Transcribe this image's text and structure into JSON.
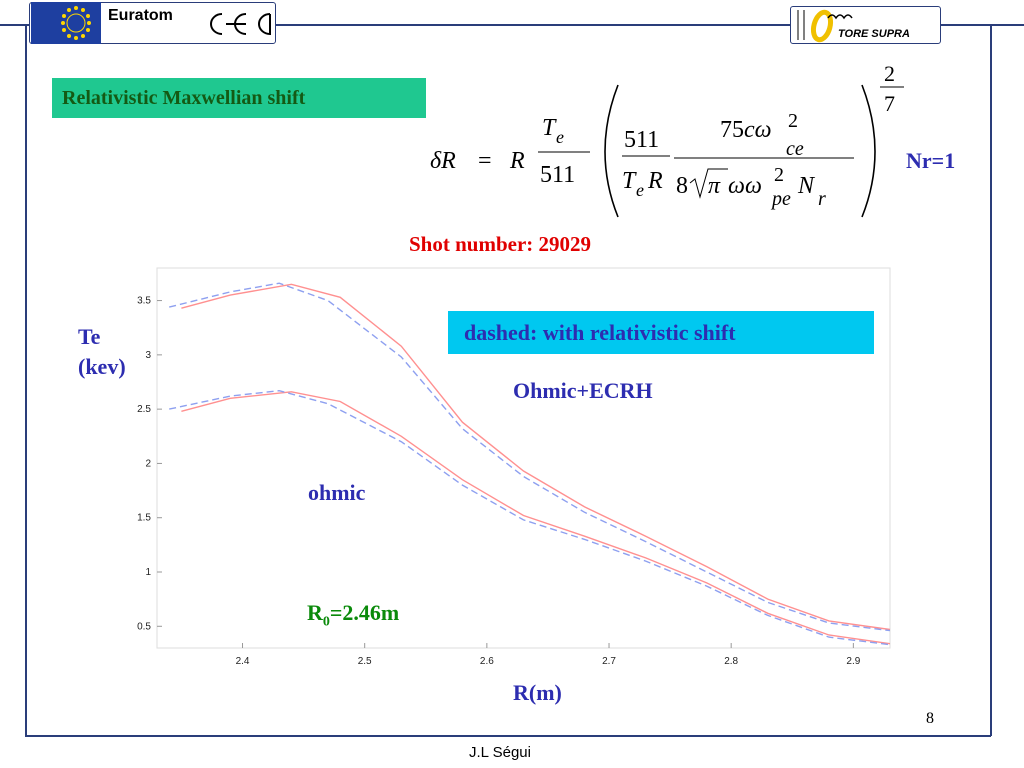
{
  "header": {
    "left_logo_text": "Euratom",
    "right_logo_text": "TORE SUPRA"
  },
  "section_title": "Relativistic Maxwellian shift",
  "formula": {
    "lhs": "δR",
    "description": "δR = R (Te/511) ( (511/(Te R)) (75 c ω_ce^2) / (8 √π ω ω_pe^2 N_r) )^(2/7)"
  },
  "nr_label": "Nr=1",
  "shot_label": "Shot number: 29029",
  "y_axis_label_line1": "Te",
  "y_axis_label_line2": "(kev)",
  "x_axis_label": "R(m)",
  "legend_note": "dashed: with relativistic shift",
  "annotations": {
    "ohmic_ecrh": "Ohmic+ECRH",
    "ohmic": "ohmic",
    "r0_prefix": "R",
    "r0_sub": "0",
    "r0_value": "=2.46m"
  },
  "page_number": "8",
  "author": "J.L Ségui",
  "colors": {
    "solid_series": "#ff9090",
    "dashed_series": "#8ea0f0",
    "title_bg": "#1fc890",
    "note_bg": "#00c8f0",
    "label_blue": "#2d2db0",
    "label_green": "#0a8a0a",
    "label_red": "#e00000"
  },
  "chart_data": {
    "type": "line",
    "xlim": [
      2.33,
      2.93
    ],
    "ylim": [
      0.3,
      3.8
    ],
    "x_ticks": [
      "2.4",
      "2.5",
      "2.6",
      "2.7",
      "2.8",
      "2.9"
    ],
    "y_ticks": [
      "0.5",
      "1",
      "1.5",
      "2",
      "2.5",
      "3",
      "3.5"
    ],
    "grid": false,
    "series": [
      {
        "style": "solid",
        "x": [
          2.35,
          2.39,
          2.44,
          2.48,
          2.53,
          2.58,
          2.63,
          2.68,
          2.73,
          2.78,
          2.83,
          2.88,
          2.93
        ],
        "values": [
          3.43,
          3.55,
          3.65,
          3.53,
          3.08,
          2.38,
          1.93,
          1.6,
          1.33,
          1.05,
          0.75,
          0.55,
          0.47
        ]
      },
      {
        "style": "dashed",
        "x": [
          2.34,
          2.39,
          2.43,
          2.47,
          2.53,
          2.58,
          2.63,
          2.68,
          2.73,
          2.78,
          2.83,
          2.88,
          2.93
        ],
        "values": [
          3.44,
          3.58,
          3.66,
          3.5,
          2.98,
          2.32,
          1.88,
          1.55,
          1.28,
          1.0,
          0.72,
          0.53,
          0.46
        ]
      },
      {
        "style": "solid",
        "x": [
          2.35,
          2.39,
          2.44,
          2.48,
          2.53,
          2.58,
          2.63,
          2.68,
          2.73,
          2.78,
          2.83,
          2.88,
          2.93
        ],
        "values": [
          2.48,
          2.6,
          2.66,
          2.57,
          2.25,
          1.85,
          1.52,
          1.33,
          1.13,
          0.9,
          0.62,
          0.42,
          0.34
        ]
      },
      {
        "style": "dashed",
        "x": [
          2.34,
          2.39,
          2.43,
          2.47,
          2.53,
          2.58,
          2.63,
          2.68,
          2.73,
          2.78,
          2.83,
          2.88,
          2.93
        ],
        "values": [
          2.5,
          2.62,
          2.67,
          2.55,
          2.2,
          1.8,
          1.48,
          1.3,
          1.1,
          0.87,
          0.6,
          0.4,
          0.33
        ]
      }
    ]
  }
}
